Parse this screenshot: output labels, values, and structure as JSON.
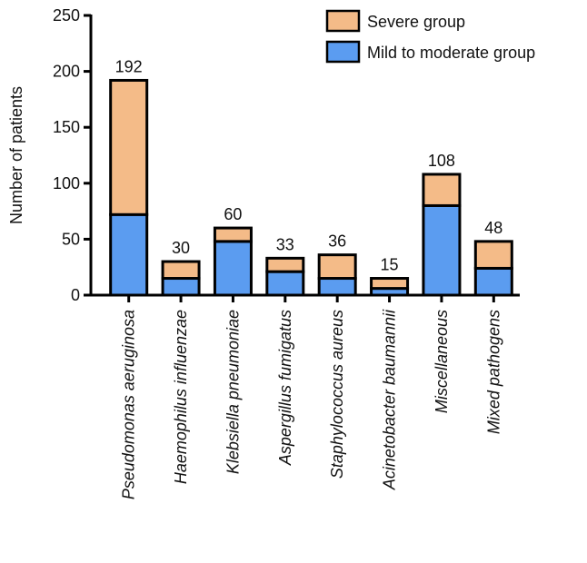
{
  "chart_data": {
    "type": "stacked_bar",
    "y_label": "Number of patients",
    "categories": [
      "Pseudomonas aeruginosa",
      "Haemophilus influenzae",
      "Klebsiella pneumoniae",
      "Aspergillus fumigatus",
      "Staphylococcus aureus",
      "Acinetobacter baumannii",
      "Miscellaneous",
      "Mixed pathogens"
    ],
    "series": [
      {
        "name": "Mild to moderate group",
        "color": "#5b9cf0",
        "values": [
          72,
          15,
          48,
          21,
          15,
          6,
          80,
          24
        ]
      },
      {
        "name": "Severe group",
        "color": "#f4bb88",
        "values": [
          120,
          15,
          12,
          12,
          21,
          9,
          28,
          24
        ]
      }
    ],
    "totals": [
      192,
      30,
      60,
      33,
      36,
      15,
      108,
      48
    ],
    "ylim": [
      0,
      250
    ],
    "yticks": [
      0,
      50,
      100,
      150,
      200,
      250
    ]
  }
}
